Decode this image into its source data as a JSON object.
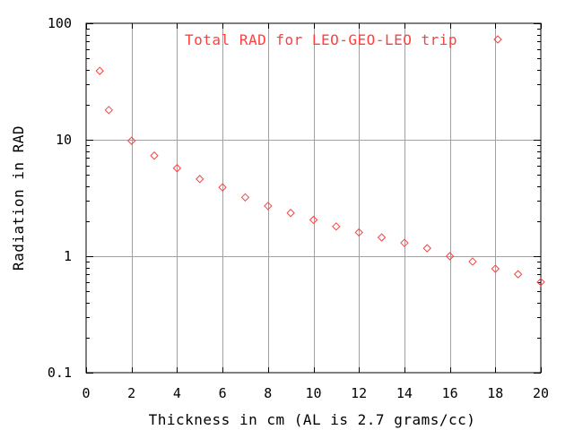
{
  "chart_data": {
    "type": "scatter",
    "title": "",
    "xlabel": "Thickness in cm (AL is 2.7 grams/cc)",
    "ylabel": "Radiation in RAD",
    "x_scale": "linear",
    "y_scale": "log",
    "xlim": [
      0,
      20
    ],
    "ylim": [
      0.1,
      100
    ],
    "x_ticks": [
      "0",
      "2",
      "4",
      "6",
      "8",
      "10",
      "12",
      "14",
      "16",
      "18",
      "20"
    ],
    "y_ticks": [
      "0.1",
      "1",
      "10",
      "100"
    ],
    "grid": true,
    "legend_position": "top",
    "series": [
      {
        "name": "Total RAD for LEO-GEO-LEO trip",
        "color": "#ff4040",
        "marker": "diamond",
        "x": [
          0.6,
          1,
          2,
          3,
          4,
          5,
          6,
          7,
          8,
          9,
          10,
          11,
          12,
          13,
          14,
          15,
          16,
          17,
          18,
          19,
          20
        ],
        "y": [
          39,
          18,
          9.8,
          7.3,
          5.7,
          4.6,
          3.9,
          3.2,
          2.7,
          2.35,
          2.05,
          1.8,
          1.6,
          1.45,
          1.3,
          1.17,
          1.0,
          0.9,
          0.78,
          0.7,
          0.6
        ]
      }
    ]
  }
}
